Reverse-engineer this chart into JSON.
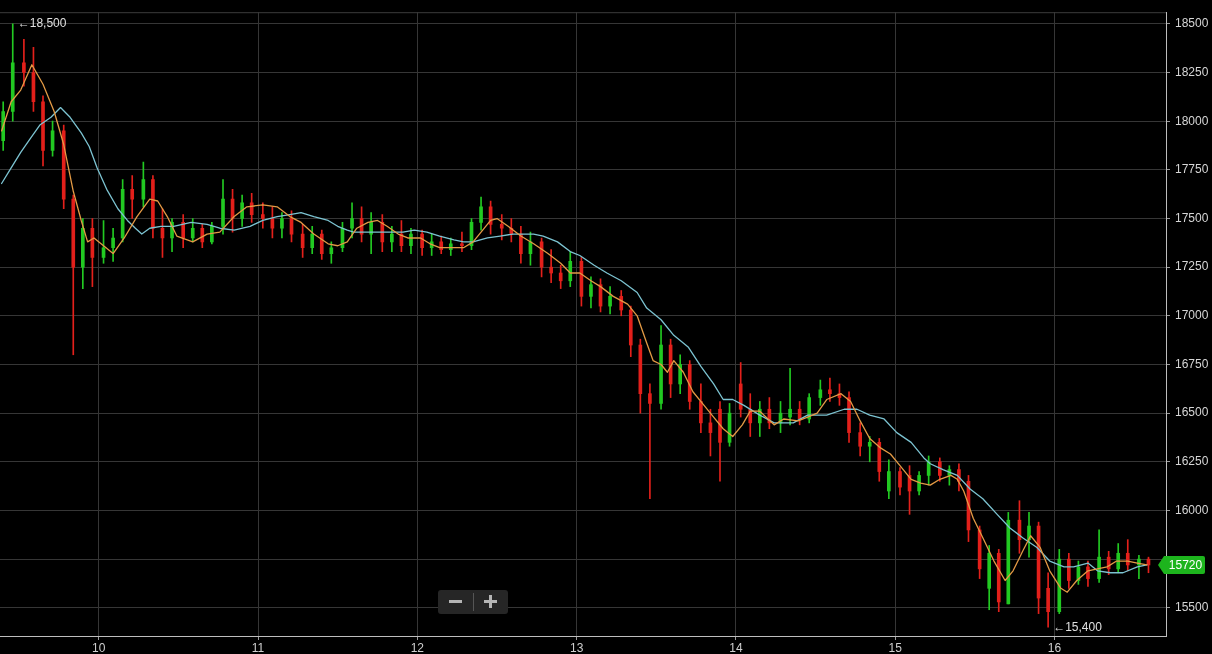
{
  "chart_data": {
    "type": "candlestick",
    "x": [
      9.4,
      9.46,
      9.53,
      9.59,
      9.65,
      9.71,
      9.78,
      9.84,
      9.9,
      9.96,
      10.03,
      10.09,
      10.15,
      10.21,
      10.28,
      10.34,
      10.4,
      10.46,
      10.53,
      10.59,
      10.65,
      10.71,
      10.78,
      10.84,
      10.9,
      10.96,
      11.03,
      11.09,
      11.15,
      11.21,
      11.28,
      11.34,
      11.4,
      11.46,
      11.53,
      11.59,
      11.65,
      11.71,
      11.78,
      11.84,
      11.9,
      11.96,
      12.03,
      12.09,
      12.15,
      12.21,
      12.28,
      12.34,
      12.4,
      12.46,
      12.53,
      12.59,
      12.65,
      12.71,
      12.78,
      12.84,
      12.9,
      12.96,
      13.03,
      13.09,
      13.15,
      13.21,
      13.28,
      13.34,
      13.4,
      13.46,
      13.53,
      13.59,
      13.65,
      13.71,
      13.78,
      13.84,
      13.9,
      13.96,
      14.03,
      14.09,
      14.15,
      14.21,
      14.28,
      14.34,
      14.4,
      14.46,
      14.53,
      14.59,
      14.65,
      14.71,
      14.78,
      14.84,
      14.9,
      14.96,
      15.03,
      15.09,
      15.15,
      15.21,
      15.28,
      15.34,
      15.4,
      15.46,
      15.53,
      15.59,
      15.65,
      15.71,
      15.78,
      15.84,
      15.9,
      15.96,
      16.03,
      16.09,
      16.15,
      16.21,
      16.28,
      16.34,
      16.4,
      16.46,
      16.53,
      16.59
    ],
    "ohlc": [
      [
        17900,
        18100,
        17850,
        18050
      ],
      [
        18050,
        18500,
        18000,
        18300
      ],
      [
        18300,
        18420,
        18180,
        18250
      ],
      [
        18250,
        18380,
        18050,
        18100
      ],
      [
        18100,
        18130,
        17770,
        17850
      ],
      [
        17850,
        18000,
        17820,
        17950
      ],
      [
        17950,
        17980,
        17550,
        17600
      ],
      [
        17600,
        17620,
        16800,
        17250
      ],
      [
        17250,
        17500,
        17140,
        17450
      ],
      [
        17450,
        17500,
        17150,
        17300
      ],
      [
        17300,
        17490,
        17270,
        17350
      ],
      [
        17350,
        17450,
        17280,
        17400
      ],
      [
        17400,
        17700,
        17380,
        17650
      ],
      [
        17650,
        17720,
        17500,
        17600
      ],
      [
        17600,
        17790,
        17560,
        17700
      ],
      [
        17700,
        17720,
        17400,
        17450
      ],
      [
        17450,
        17550,
        17300,
        17400
      ],
      [
        17400,
        17500,
        17330,
        17480
      ],
      [
        17480,
        17520,
        17350,
        17400
      ],
      [
        17400,
        17500,
        17380,
        17450
      ],
      [
        17450,
        17470,
        17350,
        17380
      ],
      [
        17380,
        17480,
        17370,
        17460
      ],
      [
        17460,
        17700,
        17420,
        17600
      ],
      [
        17600,
        17650,
        17430,
        17500
      ],
      [
        17500,
        17620,
        17460,
        17580
      ],
      [
        17580,
        17630,
        17480,
        17520
      ],
      [
        17520,
        17580,
        17450,
        17500
      ],
      [
        17500,
        17560,
        17400,
        17450
      ],
      [
        17450,
        17530,
        17400,
        17500
      ],
      [
        17500,
        17540,
        17380,
        17420
      ],
      [
        17420,
        17470,
        17300,
        17350
      ],
      [
        17350,
        17460,
        17320,
        17420
      ],
      [
        17420,
        17440,
        17290,
        17320
      ],
      [
        17320,
        17380,
        17270,
        17350
      ],
      [
        17350,
        17480,
        17330,
        17450
      ],
      [
        17450,
        17580,
        17400,
        17500
      ],
      [
        17500,
        17560,
        17380,
        17420
      ],
      [
        17420,
        17530,
        17320,
        17480
      ],
      [
        17480,
        17520,
        17330,
        17380
      ],
      [
        17380,
        17460,
        17330,
        17420
      ],
      [
        17420,
        17490,
        17330,
        17360
      ],
      [
        17360,
        17450,
        17320,
        17420
      ],
      [
        17420,
        17440,
        17310,
        17350
      ],
      [
        17350,
        17420,
        17310,
        17380
      ],
      [
        17380,
        17410,
        17320,
        17340
      ],
      [
        17340,
        17400,
        17310,
        17370
      ],
      [
        17370,
        17430,
        17330,
        17360
      ],
      [
        17360,
        17500,
        17340,
        17480
      ],
      [
        17480,
        17610,
        17440,
        17560
      ],
      [
        17560,
        17590,
        17420,
        17470
      ],
      [
        17470,
        17520,
        17390,
        17450
      ],
      [
        17450,
        17500,
        17380,
        17420
      ],
      [
        17420,
        17460,
        17270,
        17320
      ],
      [
        17320,
        17430,
        17260,
        17380
      ],
      [
        17380,
        17400,
        17200,
        17250
      ],
      [
        17250,
        17340,
        17170,
        17220
      ],
      [
        17220,
        17260,
        17140,
        17180
      ],
      [
        17180,
        17330,
        17150,
        17280
      ],
      [
        17280,
        17300,
        17050,
        17100
      ],
      [
        17100,
        17200,
        17040,
        17160
      ],
      [
        17160,
        17190,
        17020,
        17050
      ],
      [
        17050,
        17150,
        17010,
        17100
      ],
      [
        17100,
        17130,
        17000,
        17030
      ],
      [
        17030,
        17050,
        16790,
        16850
      ],
      [
        16850,
        16880,
        16500,
        16600
      ],
      [
        16600,
        16650,
        16060,
        16550
      ],
      [
        16550,
        16950,
        16520,
        16850
      ],
      [
        16850,
        16880,
        16580,
        16650
      ],
      [
        16650,
        16800,
        16600,
        16750
      ],
      [
        16750,
        16770,
        16520,
        16560
      ],
      [
        16560,
        16650,
        16400,
        16450
      ],
      [
        16450,
        16520,
        16280,
        16400
      ],
      [
        16520,
        16560,
        16150,
        16350
      ],
      [
        16350,
        16550,
        16330,
        16500
      ],
      [
        16650,
        16760,
        16480,
        16520
      ],
      [
        16520,
        16600,
        16380,
        16450
      ],
      [
        16450,
        16560,
        16380,
        16520
      ],
      [
        16520,
        16580,
        16420,
        16450
      ],
      [
        16450,
        16560,
        16400,
        16500
      ],
      [
        16480,
        16730,
        16440,
        16520
      ],
      [
        16520,
        16560,
        16440,
        16470
      ],
      [
        16470,
        16600,
        16450,
        16580
      ],
      [
        16580,
        16670,
        16540,
        16620
      ],
      [
        16620,
        16680,
        16560,
        16600
      ],
      [
        16600,
        16650,
        16540,
        16580
      ],
      [
        16580,
        16610,
        16350,
        16400
      ],
      [
        16400,
        16450,
        16280,
        16330
      ],
      [
        16330,
        16380,
        16250,
        16350
      ],
      [
        16350,
        16370,
        16150,
        16200
      ],
      [
        16100,
        16260,
        16060,
        16200
      ],
      [
        16200,
        16220,
        16080,
        16120
      ],
      [
        16180,
        16230,
        15980,
        16100
      ],
      [
        16100,
        16200,
        16080,
        16180
      ],
      [
        16180,
        16280,
        16130,
        16250
      ],
      [
        16250,
        16270,
        16150,
        16180
      ],
      [
        16180,
        16230,
        16130,
        16210
      ],
      [
        16210,
        16240,
        16100,
        16150
      ],
      [
        16150,
        16180,
        15840,
        15900
      ],
      [
        15900,
        15920,
        15650,
        15700
      ],
      [
        15600,
        15820,
        15490,
        15780
      ],
      [
        15780,
        15800,
        15480,
        15530
      ],
      [
        15520,
        15990,
        15520,
        15950
      ],
      [
        15950,
        16050,
        15780,
        15850
      ],
      [
        15850,
        15990,
        15760,
        15920
      ],
      [
        15920,
        15940,
        15470,
        15550
      ],
      [
        15600,
        15680,
        15400,
        15480
      ],
      [
        15480,
        15800,
        15470,
        15750
      ],
      [
        15750,
        15780,
        15600,
        15640
      ],
      [
        15640,
        15740,
        15620,
        15710
      ],
      [
        15710,
        15740,
        15610,
        15650
      ],
      [
        15650,
        15900,
        15630,
        15760
      ],
      [
        15760,
        15790,
        15670,
        15700
      ],
      [
        15700,
        15830,
        15680,
        15780
      ],
      [
        15780,
        15850,
        15690,
        15720
      ],
      [
        15720,
        15770,
        15650,
        15750
      ],
      [
        15750,
        15760,
        15680,
        15720
      ]
    ],
    "colors": [
      "#22c922",
      "#22c922",
      "#e3201b",
      "#e3201b",
      "#e3201b",
      "#22c922",
      "#e3201b",
      "#e3201b",
      "#22c922",
      "#e3201b",
      "#22c922",
      "#22c922",
      "#22c922",
      "#e3201b",
      "#22c922",
      "#e3201b",
      "#e3201b",
      "#22c922",
      "#e3201b",
      "#22c922",
      "#e3201b",
      "#22c922",
      "#22c922",
      "#e3201b",
      "#22c922",
      "#e3201b",
      "#e3201b",
      "#e3201b",
      "#22c922",
      "#e3201b",
      "#e3201b",
      "#22c922",
      "#e3201b",
      "#22c922",
      "#22c922",
      "#22c922",
      "#e3201b",
      "#22c922",
      "#e3201b",
      "#22c922",
      "#e3201b",
      "#22c922",
      "#e3201b",
      "#22c922",
      "#e3201b",
      "#22c922",
      "#e3201b",
      "#22c922",
      "#22c922",
      "#e3201b",
      "#e3201b",
      "#e3201b",
      "#e3201b",
      "#22c922",
      "#e3201b",
      "#e3201b",
      "#e3201b",
      "#22c922",
      "#e3201b",
      "#22c922",
      "#e3201b",
      "#22c922",
      "#e3201b",
      "#e3201b",
      "#e3201b",
      "#e3201b",
      "#22c922",
      "#e3201b",
      "#22c922",
      "#e3201b",
      "#e3201b",
      "#e3201b",
      "#e3201b",
      "#22c922",
      "#e3201b",
      "#e3201b",
      "#22c922",
      "#e3201b",
      "#22c922",
      "#22c922",
      "#e3201b",
      "#22c922",
      "#22c922",
      "#e3201b",
      "#e3201b",
      "#e3201b",
      "#e3201b",
      "#22c922",
      "#e3201b",
      "#22c922",
      "#e3201b",
      "#e3201b",
      "#22c922",
      "#22c922",
      "#e3201b",
      "#22c922",
      "#e3201b",
      "#e3201b",
      "#e3201b",
      "#22c922",
      "#e3201b",
      "#22c922",
      "#e3201b",
      "#22c922",
      "#e3201b",
      "#e3201b",
      "#22c922",
      "#e3201b",
      "#22c922",
      "#e3201b",
      "#22c922",
      "#e3201b",
      "#22c922",
      "#e3201b",
      "#22c922",
      "#e3201b"
    ],
    "series": [
      {
        "type": "line",
        "color": "#e39a45",
        "x": [
          9.39,
          9.45,
          9.51,
          9.58,
          9.65,
          9.72,
          9.78,
          9.84,
          9.89,
          9.93,
          9.97,
          10.03,
          10.09,
          10.16,
          10.24,
          10.32,
          10.37,
          10.43,
          10.49,
          10.59,
          10.68,
          10.76,
          10.85,
          10.93,
          11.03,
          11.12,
          11.2,
          11.27,
          11.35,
          11.44,
          11.5,
          11.56,
          11.62,
          11.69,
          11.75,
          11.81,
          11.88,
          11.94,
          12.02,
          12.08,
          12.14,
          12.23,
          12.29,
          12.35,
          12.4,
          12.46,
          12.5,
          12.57,
          12.65,
          12.73,
          12.82,
          12.9,
          12.96,
          13.02,
          13.09,
          13.15,
          13.23,
          13.32,
          13.38,
          13.44,
          13.48,
          13.53,
          13.57,
          13.61,
          13.67,
          13.73,
          13.8,
          13.86,
          13.92,
          13.98,
          14.04,
          14.09,
          14.15,
          14.24,
          14.3,
          14.39,
          14.45,
          14.51,
          14.57,
          14.66,
          14.72,
          14.78,
          14.84,
          14.91,
          14.97,
          15.03,
          15.1,
          15.16,
          15.22,
          15.28,
          15.35,
          15.39,
          15.43,
          15.49,
          15.55,
          15.62,
          15.69,
          15.74,
          15.8,
          15.85,
          15.91,
          15.97,
          16.04,
          16.08,
          16.14,
          16.21,
          16.27,
          16.33,
          16.39,
          16.46,
          16.52,
          16.58
        ],
        "values": [
          17950,
          18100,
          18160,
          18290,
          18190,
          18050,
          17880,
          17640,
          17490,
          17380,
          17400,
          17360,
          17320,
          17400,
          17510,
          17600,
          17590,
          17510,
          17410,
          17380,
          17420,
          17430,
          17510,
          17560,
          17570,
          17560,
          17510,
          17480,
          17420,
          17370,
          17360,
          17380,
          17450,
          17480,
          17490,
          17460,
          17420,
          17400,
          17400,
          17370,
          17350,
          17350,
          17350,
          17380,
          17430,
          17490,
          17500,
          17460,
          17410,
          17370,
          17320,
          17270,
          17220,
          17220,
          17180,
          17150,
          17100,
          17060,
          17000,
          16860,
          16770,
          16750,
          16710,
          16770,
          16710,
          16610,
          16540,
          16480,
          16420,
          16380,
          16440,
          16510,
          16510,
          16440,
          16470,
          16460,
          16480,
          16500,
          16570,
          16600,
          16560,
          16460,
          16370,
          16320,
          16290,
          16230,
          16160,
          16140,
          16130,
          16160,
          16180,
          16160,
          16100,
          15960,
          15860,
          15740,
          15640,
          15690,
          15790,
          15870,
          15810,
          15690,
          15600,
          15580,
          15640,
          15690,
          15700,
          15710,
          15740,
          15740,
          15730,
          15720
        ]
      },
      {
        "type": "line",
        "color": "#7cc3d1",
        "x": [
          9.39,
          9.45,
          9.51,
          9.57,
          9.63,
          9.7,
          9.76,
          9.82,
          9.89,
          9.94,
          9.99,
          10.05,
          10.12,
          10.18,
          10.23,
          10.27,
          10.32,
          10.39,
          10.47,
          10.58,
          10.68,
          10.76,
          10.85,
          10.95,
          11.03,
          11.12,
          11.2,
          11.27,
          11.35,
          11.44,
          11.5,
          11.56,
          11.6,
          11.69,
          11.81,
          11.91,
          11.98,
          12.06,
          12.14,
          12.23,
          12.29,
          12.35,
          12.44,
          12.52,
          12.6,
          12.73,
          12.79,
          12.88,
          12.96,
          13.02,
          13.11,
          13.19,
          13.28,
          13.38,
          13.44,
          13.53,
          13.61,
          13.7,
          13.78,
          13.86,
          13.92,
          13.98,
          14.05,
          14.15,
          14.24,
          14.36,
          14.45,
          14.57,
          14.68,
          14.76,
          14.84,
          14.93,
          15.01,
          15.1,
          15.18,
          15.22,
          15.3,
          15.39,
          15.47,
          15.55,
          15.64,
          15.72,
          15.8,
          15.89,
          15.97,
          16.06,
          16.12,
          16.21,
          16.27,
          16.35,
          16.43,
          16.52,
          16.58
        ],
        "values": [
          17680,
          17760,
          17840,
          17910,
          17980,
          18020,
          18070,
          18020,
          17940,
          17870,
          17760,
          17650,
          17550,
          17490,
          17450,
          17420,
          17450,
          17460,
          17460,
          17480,
          17470,
          17450,
          17440,
          17460,
          17490,
          17510,
          17520,
          17530,
          17510,
          17490,
          17460,
          17440,
          17430,
          17430,
          17430,
          17430,
          17440,
          17430,
          17410,
          17390,
          17380,
          17380,
          17400,
          17410,
          17420,
          17420,
          17410,
          17380,
          17330,
          17310,
          17260,
          17220,
          17180,
          17120,
          17040,
          16980,
          16900,
          16840,
          16740,
          16650,
          16570,
          16570,
          16540,
          16490,
          16450,
          16450,
          16490,
          16490,
          16520,
          16520,
          16490,
          16470,
          16400,
          16350,
          16270,
          16240,
          16210,
          16180,
          16110,
          16060,
          15980,
          15910,
          15860,
          15810,
          15740,
          15710,
          15710,
          15730,
          15690,
          15680,
          15680,
          15710,
          15720
        ]
      }
    ],
    "xlim": [
      9.38,
      16.7
    ],
    "ylim": [
      15355,
      18560
    ],
    "xticks": [
      10,
      11,
      12,
      13,
      14,
      15,
      16
    ],
    "yticks": [
      15500,
      {
        "value": 15750,
        "label": null
      },
      16000,
      16250,
      16500,
      16750,
      17000,
      17250,
      17500,
      17750,
      18000,
      18250,
      18500
    ],
    "grid": true,
    "annotations": [
      {
        "text": "←18,500",
        "x": 9.46,
        "y": 18500
      },
      {
        "text": "←15,400",
        "x": 15.96,
        "y": 15400
      },
      "15720"
    ]
  }
}
